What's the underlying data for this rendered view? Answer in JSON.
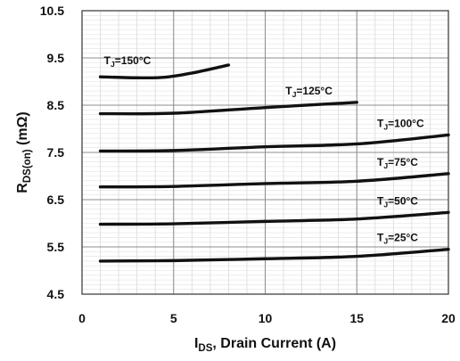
{
  "chart_data": {
    "type": "line",
    "title": "",
    "xlabel": {
      "main": "I",
      "sub": "DS",
      "rest": ", Drain Current (A)"
    },
    "ylabel": {
      "main": "R",
      "sub": "DS(on)",
      "rest": " (mΩ)"
    },
    "xlim": [
      0,
      20
    ],
    "ylim": [
      4.5,
      10.5
    ],
    "x_ticks": [
      0,
      5,
      10,
      15,
      20
    ],
    "x_tick_labels": [
      "0",
      "5",
      "10",
      "15",
      "20"
    ],
    "y_ticks": [
      4.5,
      5.5,
      6.5,
      7.5,
      8.5,
      9.5,
      10.5
    ],
    "y_tick_labels": [
      "4.5",
      "5.5",
      "6.5",
      "7.5",
      "8.5",
      "9.5",
      "10.5"
    ],
    "x_minor_step": 1,
    "y_minor_step": 0.1,
    "grid": true,
    "series": [
      {
        "label_main": "T",
        "label_sub": "J",
        "label_rest": "=150°C",
        "x": [
          1,
          3,
          4.5,
          6,
          8
        ],
        "y": [
          9.1,
          9.08,
          9.09,
          9.18,
          9.35
        ]
      },
      {
        "label_main": "T",
        "label_sub": "J",
        "label_rest": "=125°C",
        "x": [
          1,
          5,
          10,
          15
        ],
        "y": [
          8.32,
          8.33,
          8.45,
          8.56
        ]
      },
      {
        "label_main": "T",
        "label_sub": "J",
        "label_rest": "=100°C",
        "x": [
          1,
          5,
          10,
          15,
          20
        ],
        "y": [
          7.53,
          7.54,
          7.62,
          7.68,
          7.87
        ]
      },
      {
        "label_main": "T",
        "label_sub": "J",
        "label_rest": "=75°C",
        "x": [
          1,
          5,
          10,
          15,
          20
        ],
        "y": [
          6.77,
          6.78,
          6.84,
          6.89,
          7.05
        ]
      },
      {
        "label_main": "T",
        "label_sub": "J",
        "label_rest": "=50°C",
        "x": [
          1,
          5,
          10,
          15,
          20
        ],
        "y": [
          5.98,
          5.99,
          6.04,
          6.09,
          6.23
        ]
      },
      {
        "label_main": "T",
        "label_sub": "J",
        "label_rest": "=25°C",
        "x": [
          1,
          5,
          10,
          15,
          20
        ],
        "y": [
          5.2,
          5.21,
          5.25,
          5.3,
          5.45
        ]
      }
    ]
  }
}
